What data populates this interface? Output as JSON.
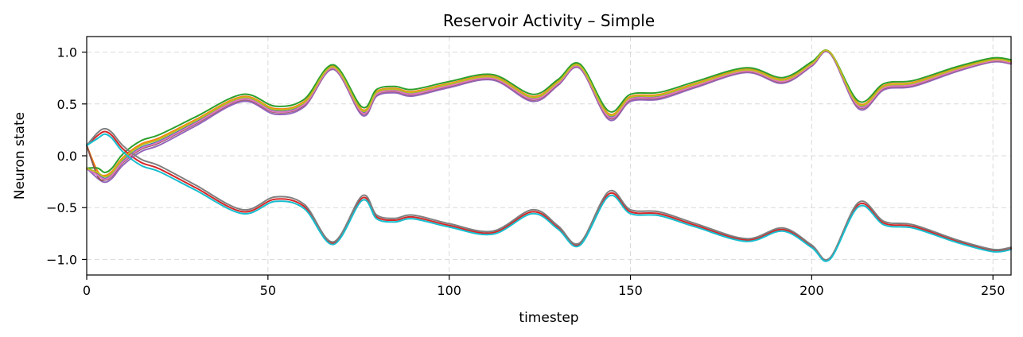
{
  "chart_data": {
    "type": "line",
    "title": "Reservoir Activity – Simple",
    "xlabel": "timestep",
    "ylabel": "Neuron state",
    "xlim": [
      0,
      255
    ],
    "ylim": [
      -1.15,
      1.15
    ],
    "xticks": [
      0,
      50,
      100,
      150,
      200,
      250
    ],
    "xtick_labels": [
      "0",
      "50",
      "100",
      "150",
      "200",
      "250"
    ],
    "yticks": [
      1.0,
      0.5,
      0.0,
      -0.5,
      -1.0
    ],
    "ytick_labels": [
      "1.0",
      "0.5",
      "0.0",
      "−0.5",
      "−1.0"
    ],
    "grid": true,
    "x": [
      0,
      3,
      5,
      7,
      10,
      15,
      20,
      30,
      43,
      52,
      60,
      68,
      76,
      80,
      85,
      90,
      100,
      112,
      123,
      130,
      136,
      144,
      150,
      158,
      168,
      182,
      192,
      200,
      205,
      213,
      220,
      228,
      240,
      250,
      255
    ],
    "base": [
      0,
      0.18,
      0.22,
      0.18,
      0.05,
      -0.08,
      -0.14,
      -0.32,
      -0.55,
      -0.43,
      -0.5,
      -0.85,
      -0.42,
      -0.6,
      -0.63,
      -0.6,
      -0.68,
      -0.75,
      -0.55,
      -0.7,
      -0.86,
      -0.38,
      -0.55,
      -0.57,
      -0.68,
      -0.82,
      -0.72,
      -0.88,
      -1.0,
      -0.48,
      -0.66,
      -0.69,
      -0.83,
      -0.92,
      -0.9
    ],
    "series": [
      {
        "color": "#1f77b4",
        "sign": -1,
        "offset": 0.0
      },
      {
        "color": "#ff7f0e",
        "sign": -1,
        "offset": 0.025
      },
      {
        "color": "#2ca02c",
        "sign": -1,
        "offset": 0.05
      },
      {
        "color": "#d62728",
        "sign": 1,
        "offset": 0.012
      },
      {
        "color": "#9467bd",
        "sign": -1,
        "offset": -0.03
      },
      {
        "color": "#8c564b",
        "sign": -1,
        "offset": -0.012
      },
      {
        "color": "#e377c2",
        "sign": -1,
        "offset": -0.006
      },
      {
        "color": "#7f7f7f",
        "sign": 1,
        "offset": 0.035
      },
      {
        "color": "#bcbd22",
        "sign": -1,
        "offset": 0.015
      },
      {
        "color": "#17becf",
        "sign": 1,
        "offset": -0.01
      }
    ]
  }
}
